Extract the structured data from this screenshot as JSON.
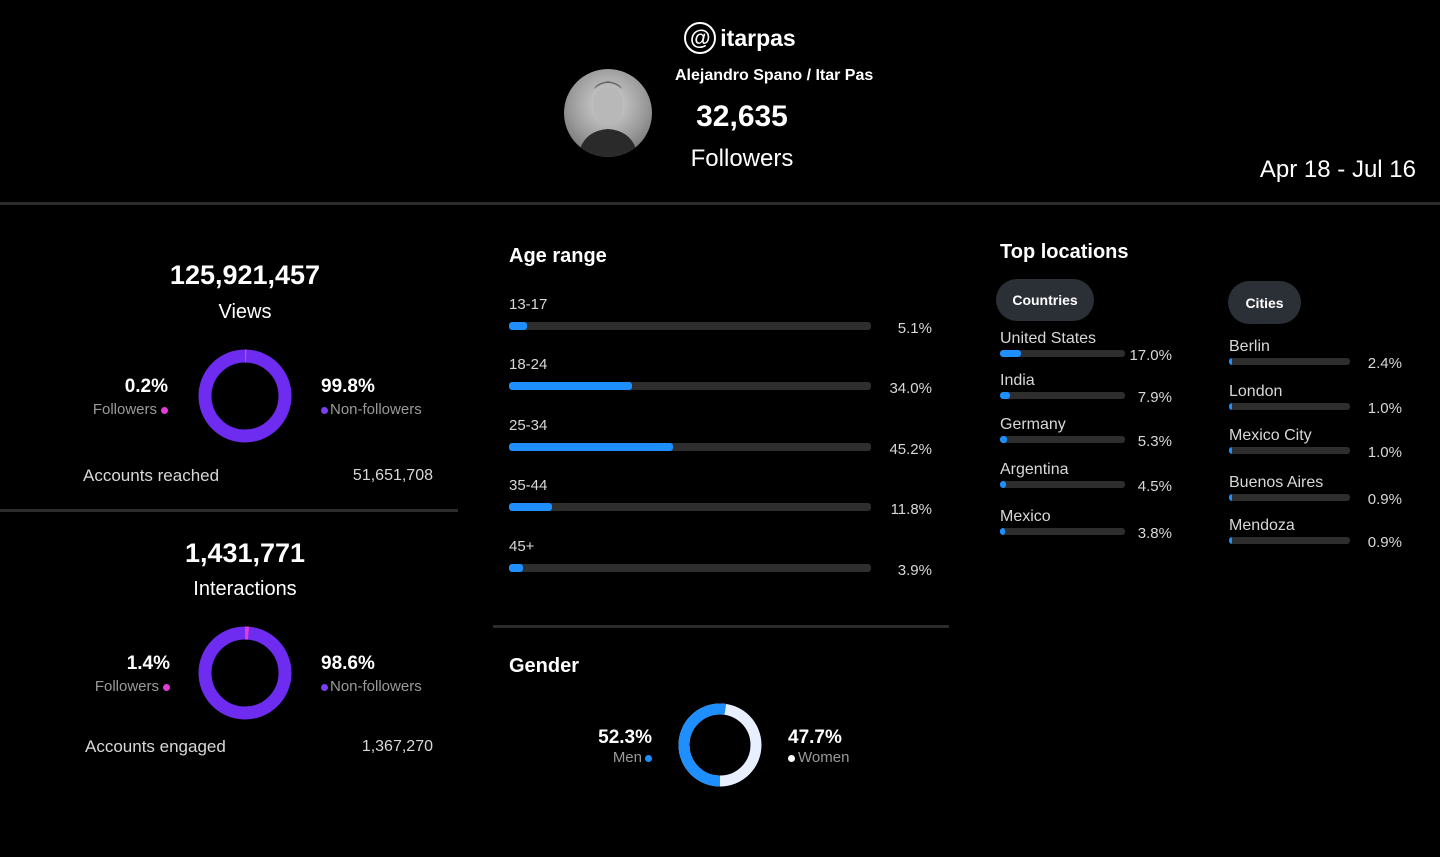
{
  "profile": {
    "handle": "itarpas",
    "at_symbol": "@",
    "full_name": "Alejandro Spano / Itar Pas",
    "followers_count": "32,635",
    "followers_label": "Followers",
    "date_range": "Apr 18 - Jul 16"
  },
  "views": {
    "total": "125,921,457",
    "label": "Views",
    "followers_pct": "0.2%",
    "followers_label": "Followers",
    "followers_fraction": 0.002,
    "nonfollowers_pct": "99.8%",
    "nonfollowers_label": "Non-followers",
    "accounts_label": "Accounts reached",
    "accounts_value": "51,651,708"
  },
  "interactions": {
    "total": "1,431,771",
    "label": "Interactions",
    "followers_pct": "1.4%",
    "followers_label": "Followers",
    "followers_fraction": 0.014,
    "nonfollowers_pct": "98.6%",
    "nonfollowers_label": "Non-followers",
    "accounts_label": "Accounts engaged",
    "accounts_value": "1,367,270"
  },
  "age_range": {
    "title": "Age range",
    "items": [
      {
        "label": "13-17",
        "pct": "5.1%",
        "value": 5.1
      },
      {
        "label": "18-24",
        "pct": "34.0%",
        "value": 34.0
      },
      {
        "label": "25-34",
        "pct": "45.2%",
        "value": 45.2
      },
      {
        "label": "35-44",
        "pct": "11.8%",
        "value": 11.8
      },
      {
        "label": "45+",
        "pct": "3.9%",
        "value": 3.9
      }
    ]
  },
  "gender": {
    "title": "Gender",
    "men_pct": "52.3%",
    "men_label": "Men",
    "men_fraction": 0.523,
    "women_pct": "47.7%",
    "women_label": "Women"
  },
  "locations": {
    "title": "Top locations",
    "countries_tab": "Countries",
    "cities_tab": "Cities",
    "countries": [
      {
        "label": "United States",
        "pct": "17.0%",
        "value": 17.0
      },
      {
        "label": "India",
        "pct": "7.9%",
        "value": 7.9
      },
      {
        "label": "Germany",
        "pct": "5.3%",
        "value": 5.3
      },
      {
        "label": "Argentina",
        "pct": "4.5%",
        "value": 4.5
      },
      {
        "label": "Mexico",
        "pct": "3.8%",
        "value": 3.8
      }
    ],
    "cities": [
      {
        "label": "Berlin",
        "pct": "2.4%",
        "value": 2.4
      },
      {
        "label": "London",
        "pct": "1.0%",
        "value": 1.0
      },
      {
        "label": "Mexico City",
        "pct": "1.0%",
        "value": 1.0
      },
      {
        "label": "Buenos Aires",
        "pct": "0.9%",
        "value": 0.9
      },
      {
        "label": "Mendoza",
        "pct": "0.9%",
        "value": 0.9
      }
    ]
  },
  "colors": {
    "background": "#000000",
    "donut_nonfollowers": "#6e2cf0",
    "donut_followers": "#e23cd6",
    "bar_fill": "#1f8fff",
    "bar_track": "#2e2e2e",
    "gender_men": "#1f8fff",
    "gender_women": "#e8f0ff"
  }
}
